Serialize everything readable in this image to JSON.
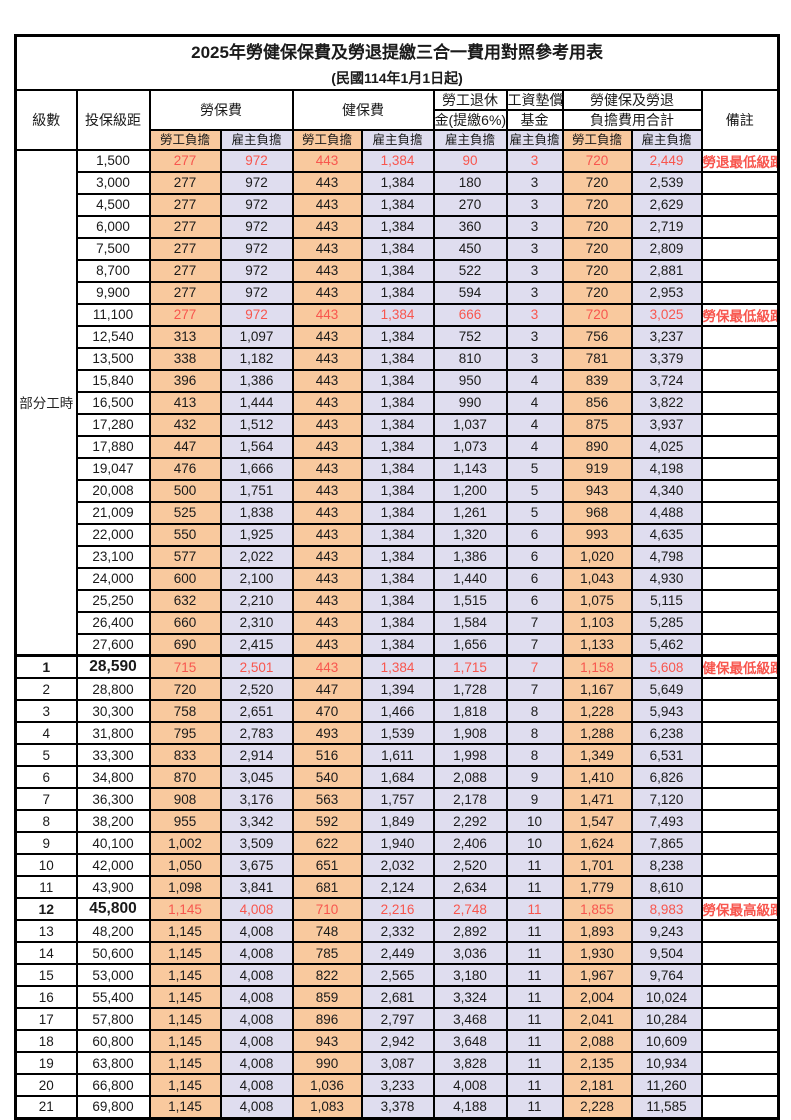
{
  "page": {
    "title": "2025年勞健保保費及勞退提繳三合一費用對照參考用表",
    "subtitle": "(民國114年1月1日起)"
  },
  "colors": {
    "employee_bg": "#F9C99E",
    "employer_bg": "#DFDDEF",
    "highlight_red": "#F8564E"
  },
  "header": {
    "level": "級數",
    "bracket": "投保級距",
    "labor_ins": "勞保費",
    "health_ins": "健保費",
    "pension_line1": "勞工退休",
    "pension_line2": "金(提繳6%)",
    "wage_fund_line1": "工資墊償",
    "wage_fund_line2": "基金",
    "total_line1": "勞健保及勞退",
    "total_line2": "負擔費用合計",
    "remark": "備註",
    "employee": "勞工負擔",
    "employer": "雇主負擔"
  },
  "parttime_label": "部分工時",
  "rows": [
    {
      "level": "",
      "bracket": "1,500",
      "values": [
        "277",
        "972",
        "443",
        "1,384",
        "90",
        "3",
        "720",
        "2,449"
      ],
      "remark": "勞退最低級距",
      "red": true,
      "bold": false
    },
    {
      "level": "",
      "bracket": "3,000",
      "values": [
        "277",
        "972",
        "443",
        "1,384",
        "180",
        "3",
        "720",
        "2,539"
      ],
      "remark": "",
      "red": false,
      "bold": false
    },
    {
      "level": "",
      "bracket": "4,500",
      "values": [
        "277",
        "972",
        "443",
        "1,384",
        "270",
        "3",
        "720",
        "2,629"
      ],
      "remark": "",
      "red": false,
      "bold": false
    },
    {
      "level": "",
      "bracket": "6,000",
      "values": [
        "277",
        "972",
        "443",
        "1,384",
        "360",
        "3",
        "720",
        "2,719"
      ],
      "remark": "",
      "red": false,
      "bold": false
    },
    {
      "level": "",
      "bracket": "7,500",
      "values": [
        "277",
        "972",
        "443",
        "1,384",
        "450",
        "3",
        "720",
        "2,809"
      ],
      "remark": "",
      "red": false,
      "bold": false
    },
    {
      "level": "",
      "bracket": "8,700",
      "values": [
        "277",
        "972",
        "443",
        "1,384",
        "522",
        "3",
        "720",
        "2,881"
      ],
      "remark": "",
      "red": false,
      "bold": false
    },
    {
      "level": "",
      "bracket": "9,900",
      "values": [
        "277",
        "972",
        "443",
        "1,384",
        "594",
        "3",
        "720",
        "2,953"
      ],
      "remark": "",
      "red": false,
      "bold": false
    },
    {
      "level": "",
      "bracket": "11,100",
      "values": [
        "277",
        "972",
        "443",
        "1,384",
        "666",
        "3",
        "720",
        "3,025"
      ],
      "remark": "勞保最低級距",
      "red": true,
      "bold": false
    },
    {
      "level": "",
      "bracket": "12,540",
      "values": [
        "313",
        "1,097",
        "443",
        "1,384",
        "752",
        "3",
        "756",
        "3,237"
      ],
      "remark": "",
      "red": false,
      "bold": false
    },
    {
      "level": "",
      "bracket": "13,500",
      "values": [
        "338",
        "1,182",
        "443",
        "1,384",
        "810",
        "3",
        "781",
        "3,379"
      ],
      "remark": "",
      "red": false,
      "bold": false
    },
    {
      "level": "",
      "bracket": "15,840",
      "values": [
        "396",
        "1,386",
        "443",
        "1,384",
        "950",
        "4",
        "839",
        "3,724"
      ],
      "remark": "",
      "red": false,
      "bold": false
    },
    {
      "level": "",
      "bracket": "16,500",
      "values": [
        "413",
        "1,444",
        "443",
        "1,384",
        "990",
        "4",
        "856",
        "3,822"
      ],
      "remark": "",
      "red": false,
      "bold": false
    },
    {
      "level": "",
      "bracket": "17,280",
      "values": [
        "432",
        "1,512",
        "443",
        "1,384",
        "1,037",
        "4",
        "875",
        "3,937"
      ],
      "remark": "",
      "red": false,
      "bold": false
    },
    {
      "level": "",
      "bracket": "17,880",
      "values": [
        "447",
        "1,564",
        "443",
        "1,384",
        "1,073",
        "4",
        "890",
        "4,025"
      ],
      "remark": "",
      "red": false,
      "bold": false
    },
    {
      "level": "",
      "bracket": "19,047",
      "values": [
        "476",
        "1,666",
        "443",
        "1,384",
        "1,143",
        "5",
        "919",
        "4,198"
      ],
      "remark": "",
      "red": false,
      "bold": false
    },
    {
      "level": "",
      "bracket": "20,008",
      "values": [
        "500",
        "1,751",
        "443",
        "1,384",
        "1,200",
        "5",
        "943",
        "4,340"
      ],
      "remark": "",
      "red": false,
      "bold": false
    },
    {
      "level": "",
      "bracket": "21,009",
      "values": [
        "525",
        "1,838",
        "443",
        "1,384",
        "1,261",
        "5",
        "968",
        "4,488"
      ],
      "remark": "",
      "red": false,
      "bold": false
    },
    {
      "level": "",
      "bracket": "22,000",
      "values": [
        "550",
        "1,925",
        "443",
        "1,384",
        "1,320",
        "6",
        "993",
        "4,635"
      ],
      "remark": "",
      "red": false,
      "bold": false
    },
    {
      "level": "",
      "bracket": "23,100",
      "values": [
        "577",
        "2,022",
        "443",
        "1,384",
        "1,386",
        "6",
        "1,020",
        "4,798"
      ],
      "remark": "",
      "red": false,
      "bold": false
    },
    {
      "level": "",
      "bracket": "24,000",
      "values": [
        "600",
        "2,100",
        "443",
        "1,384",
        "1,440",
        "6",
        "1,043",
        "4,930"
      ],
      "remark": "",
      "red": false,
      "bold": false
    },
    {
      "level": "",
      "bracket": "25,250",
      "values": [
        "632",
        "2,210",
        "443",
        "1,384",
        "1,515",
        "6",
        "1,075",
        "5,115"
      ],
      "remark": "",
      "red": false,
      "bold": false
    },
    {
      "level": "",
      "bracket": "26,400",
      "values": [
        "660",
        "2,310",
        "443",
        "1,384",
        "1,584",
        "7",
        "1,103",
        "5,285"
      ],
      "remark": "",
      "red": false,
      "bold": false
    },
    {
      "level": "",
      "bracket": "27,600",
      "values": [
        "690",
        "2,415",
        "443",
        "1,384",
        "1,656",
        "7",
        "1,133",
        "5,462"
      ],
      "remark": "",
      "red": false,
      "bold": false
    },
    {
      "level": "1",
      "bracket": "28,590",
      "values": [
        "715",
        "2,501",
        "443",
        "1,384",
        "1,715",
        "7",
        "1,158",
        "5,608"
      ],
      "remark": "健保最低級距",
      "red": true,
      "bold": true
    },
    {
      "level": "2",
      "bracket": "28,800",
      "values": [
        "720",
        "2,520",
        "447",
        "1,394",
        "1,728",
        "7",
        "1,167",
        "5,649"
      ],
      "remark": "",
      "red": false,
      "bold": false
    },
    {
      "level": "3",
      "bracket": "30,300",
      "values": [
        "758",
        "2,651",
        "470",
        "1,466",
        "1,818",
        "8",
        "1,228",
        "5,943"
      ],
      "remark": "",
      "red": false,
      "bold": false
    },
    {
      "level": "4",
      "bracket": "31,800",
      "values": [
        "795",
        "2,783",
        "493",
        "1,539",
        "1,908",
        "8",
        "1,288",
        "6,238"
      ],
      "remark": "",
      "red": false,
      "bold": false
    },
    {
      "level": "5",
      "bracket": "33,300",
      "values": [
        "833",
        "2,914",
        "516",
        "1,611",
        "1,998",
        "8",
        "1,349",
        "6,531"
      ],
      "remark": "",
      "red": false,
      "bold": false
    },
    {
      "level": "6",
      "bracket": "34,800",
      "values": [
        "870",
        "3,045",
        "540",
        "1,684",
        "2,088",
        "9",
        "1,410",
        "6,826"
      ],
      "remark": "",
      "red": false,
      "bold": false
    },
    {
      "level": "7",
      "bracket": "36,300",
      "values": [
        "908",
        "3,176",
        "563",
        "1,757",
        "2,178",
        "9",
        "1,471",
        "7,120"
      ],
      "remark": "",
      "red": false,
      "bold": false
    },
    {
      "level": "8",
      "bracket": "38,200",
      "values": [
        "955",
        "3,342",
        "592",
        "1,849",
        "2,292",
        "10",
        "1,547",
        "7,493"
      ],
      "remark": "",
      "red": false,
      "bold": false
    },
    {
      "level": "9",
      "bracket": "40,100",
      "values": [
        "1,002",
        "3,509",
        "622",
        "1,940",
        "2,406",
        "10",
        "1,624",
        "7,865"
      ],
      "remark": "",
      "red": false,
      "bold": false
    },
    {
      "level": "10",
      "bracket": "42,000",
      "values": [
        "1,050",
        "3,675",
        "651",
        "2,032",
        "2,520",
        "11",
        "1,701",
        "8,238"
      ],
      "remark": "",
      "red": false,
      "bold": false
    },
    {
      "level": "11",
      "bracket": "43,900",
      "values": [
        "1,098",
        "3,841",
        "681",
        "2,124",
        "2,634",
        "11",
        "1,779",
        "8,610"
      ],
      "remark": "",
      "red": false,
      "bold": false
    },
    {
      "level": "12",
      "bracket": "45,800",
      "values": [
        "1,145",
        "4,008",
        "710",
        "2,216",
        "2,748",
        "11",
        "1,855",
        "8,983"
      ],
      "remark": "勞保最高級距",
      "red": true,
      "bold": true
    },
    {
      "level": "13",
      "bracket": "48,200",
      "values": [
        "1,145",
        "4,008",
        "748",
        "2,332",
        "2,892",
        "11",
        "1,893",
        "9,243"
      ],
      "remark": "",
      "red": false,
      "bold": false
    },
    {
      "level": "14",
      "bracket": "50,600",
      "values": [
        "1,145",
        "4,008",
        "785",
        "2,449",
        "3,036",
        "11",
        "1,930",
        "9,504"
      ],
      "remark": "",
      "red": false,
      "bold": false
    },
    {
      "level": "15",
      "bracket": "53,000",
      "values": [
        "1,145",
        "4,008",
        "822",
        "2,565",
        "3,180",
        "11",
        "1,967",
        "9,764"
      ],
      "remark": "",
      "red": false,
      "bold": false
    },
    {
      "level": "16",
      "bracket": "55,400",
      "values": [
        "1,145",
        "4,008",
        "859",
        "2,681",
        "3,324",
        "11",
        "2,004",
        "10,024"
      ],
      "remark": "",
      "red": false,
      "bold": false
    },
    {
      "level": "17",
      "bracket": "57,800",
      "values": [
        "1,145",
        "4,008",
        "896",
        "2,797",
        "3,468",
        "11",
        "2,041",
        "10,284"
      ],
      "remark": "",
      "red": false,
      "bold": false
    },
    {
      "level": "18",
      "bracket": "60,800",
      "values": [
        "1,145",
        "4,008",
        "943",
        "2,942",
        "3,648",
        "11",
        "2,088",
        "10,609"
      ],
      "remark": "",
      "red": false,
      "bold": false
    },
    {
      "level": "19",
      "bracket": "63,800",
      "values": [
        "1,145",
        "4,008",
        "990",
        "3,087",
        "3,828",
        "11",
        "2,135",
        "10,934"
      ],
      "remark": "",
      "red": false,
      "bold": false
    },
    {
      "level": "20",
      "bracket": "66,800",
      "values": [
        "1,145",
        "4,008",
        "1,036",
        "3,233",
        "4,008",
        "11",
        "2,181",
        "11,260"
      ],
      "remark": "",
      "red": false,
      "bold": false
    },
    {
      "level": "21",
      "bracket": "69,800",
      "values": [
        "1,145",
        "4,008",
        "1,083",
        "3,378",
        "4,188",
        "11",
        "2,228",
        "11,585"
      ],
      "remark": "",
      "red": false,
      "bold": false
    }
  ]
}
